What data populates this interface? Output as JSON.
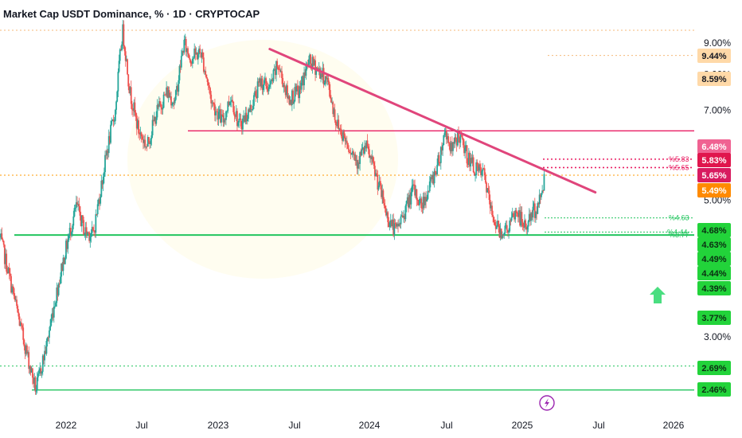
{
  "title": "Market Cap USDT Dominance, % · 1D · CRYPTOCAP",
  "scale_button": "%",
  "icons": {
    "lightning": "lightning-icon",
    "arrow": "arrow-up-icon"
  },
  "chart_data": {
    "type": "candlestick",
    "symbol": "USDT Dominance",
    "interval": "1D",
    "source": "CRYPTOCAP",
    "x_ticks": [
      "2022",
      "Jul",
      "2023",
      "Jul",
      "2024",
      "Jul",
      "2025",
      "Jul",
      "2026"
    ],
    "y_ticks": [
      "9.00%",
      "8.00%",
      "7.00%",
      "5.00%",
      "3.00%",
      "2.46%"
    ],
    "y_range": [
      2.4,
      9.9
    ],
    "y_scale": "log",
    "x_range": [
      "2021-09-01",
      "2026-03-01"
    ],
    "colors": {
      "up": "#26a69a",
      "down": "#ef5350",
      "support": "#22c55e",
      "resistance": "#e91e63",
      "last": "#ff9800",
      "fib": "#f5b97a"
    },
    "series_path": [
      [
        "2021-09-01",
        4.35
      ],
      [
        "2021-09-25",
        3.7
      ],
      [
        "2021-10-20",
        3.1
      ],
      [
        "2021-11-10",
        2.7
      ],
      [
        "2021-11-25",
        2.46
      ],
      [
        "2021-12-20",
        2.9
      ],
      [
        "2022-01-15",
        3.6
      ],
      [
        "2022-02-05",
        4.2
      ],
      [
        "2022-03-01",
        4.9
      ],
      [
        "2022-03-20",
        4.45
      ],
      [
        "2022-04-10",
        4.4
      ],
      [
        "2022-05-01",
        5.4
      ],
      [
        "2022-05-12",
        6.0
      ],
      [
        "2022-06-01",
        7.0
      ],
      [
        "2022-06-18",
        9.44
      ],
      [
        "2022-07-05",
        7.5
      ],
      [
        "2022-07-25",
        6.5
      ],
      [
        "2022-08-15",
        6.1
      ],
      [
        "2022-09-05",
        6.9
      ],
      [
        "2022-10-01",
        7.5
      ],
      [
        "2022-10-20",
        7.2
      ],
      [
        "2022-11-10",
        9.0
      ],
      [
        "2022-11-25",
        8.5
      ],
      [
        "2022-12-20",
        8.7
      ],
      [
        "2023-01-15",
        7.2
      ],
      [
        "2023-02-10",
        6.7
      ],
      [
        "2023-03-01",
        7.4
      ],
      [
        "2023-03-20",
        6.6
      ],
      [
        "2023-04-15",
        7.0
      ],
      [
        "2023-05-10",
        7.8
      ],
      [
        "2023-06-01",
        7.6
      ],
      [
        "2023-06-20",
        8.3
      ],
      [
        "2023-07-15",
        7.3
      ],
      [
        "2023-08-10",
        7.5
      ],
      [
        "2023-09-01",
        8.4
      ],
      [
        "2023-09-20",
        8.2
      ],
      [
        "2023-10-15",
        7.8
      ],
      [
        "2023-11-05",
        6.7
      ],
      [
        "2023-12-01",
        6.2
      ],
      [
        "2023-12-25",
        5.8
      ],
      [
        "2024-01-15",
        6.1
      ],
      [
        "2024-02-10",
        5.4
      ],
      [
        "2024-03-05",
        4.7
      ],
      [
        "2024-03-25",
        4.45
      ],
      [
        "2024-04-15",
        4.8
      ],
      [
        "2024-05-05",
        5.2
      ],
      [
        "2024-05-25",
        4.9
      ],
      [
        "2024-06-15",
        5.3
      ],
      [
        "2024-07-05",
        5.8
      ],
      [
        "2024-07-20",
        6.5
      ],
      [
        "2024-08-05",
        6.0
      ],
      [
        "2024-08-20",
        6.4
      ],
      [
        "2024-09-10",
        5.9
      ],
      [
        "2024-09-30",
        5.6
      ],
      [
        "2024-10-20",
        5.5
      ],
      [
        "2024-11-05",
        4.8
      ],
      [
        "2024-11-25",
        4.45
      ],
      [
        "2024-12-15",
        4.5
      ],
      [
        "2025-01-05",
        4.8
      ],
      [
        "2025-01-25",
        4.5
      ],
      [
        "2025-02-10",
        4.75
      ],
      [
        "2025-02-25",
        4.9
      ],
      [
        "2025-03-05",
        5.15
      ],
      [
        "2025-03-12",
        5.49
      ]
    ],
    "trendline": [
      [
        "2023-06-01",
        8.8
      ],
      [
        "2025-07-10",
        5.15
      ]
    ],
    "levels": [
      {
        "value": 9.44,
        "label": "9.44%",
        "color": "#f5b97a",
        "style": "dotted"
      },
      {
        "value": 8.59,
        "label": "8.59%",
        "color": "#f5b97a",
        "style": "dotted"
      },
      {
        "value": 6.48,
        "label": "6.48%",
        "color": "#e91e63",
        "style": "solid"
      },
      {
        "value": 5.83,
        "label": "5.83%",
        "color": "#e91e63",
        "style": "dotted"
      },
      {
        "value": 5.65,
        "label": "5.65%",
        "color": "#e91e63",
        "style": "dotted"
      },
      {
        "value": 5.49,
        "label": "5.49%",
        "color": "#ff9800",
        "style": "dotted"
      },
      {
        "value": 4.68,
        "label": "4.68%",
        "color": "#22c55e",
        "style": "dotted"
      },
      {
        "value": 4.63,
        "label": "4.63%",
        "color": "#22c55e",
        "style": "none"
      },
      {
        "value": 4.49,
        "label": "4.49%",
        "color": "#22c55e",
        "style": "none"
      },
      {
        "value": 4.44,
        "label": "4.44%",
        "color": "#22c55e",
        "style": "dotted"
      },
      {
        "value": 4.39,
        "label": "4.39%",
        "color": "#22c55e",
        "style": "solid"
      },
      {
        "value": 3.77,
        "label": "3.77%",
        "color": "#22c55e",
        "style": "none"
      },
      {
        "value": 2.69,
        "label": "2.69%",
        "color": "#22c55e",
        "style": "dotted"
      },
      {
        "value": 2.46,
        "label": "2.46%",
        "color": "#22c55e",
        "style": "solid"
      }
    ],
    "notes": [
      {
        "text": "%5.83",
        "color": "#e91e63"
      },
      {
        "text": "%5.65",
        "color": "#e91e63"
      },
      {
        "text": "%4.63",
        "color": "#22c55e"
      },
      {
        "text": "%4.44",
        "color": "#22c55e"
      },
      {
        "text": "%3.77",
        "color": "#22c55e"
      }
    ]
  }
}
